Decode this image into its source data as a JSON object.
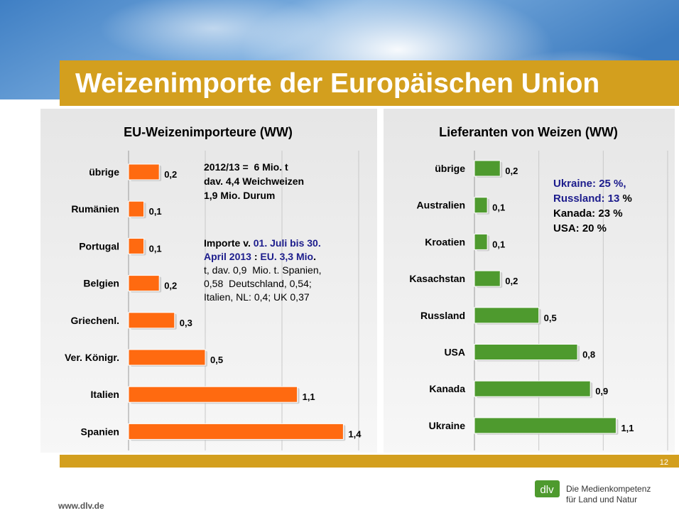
{
  "slide": {
    "title": "Weizenimporte der Europäischen Union",
    "page_number": "12",
    "website": "www.dlv.de",
    "logo": "dlv",
    "tagline": [
      "Die Medienkompetenz",
      "für Land und Natur"
    ]
  },
  "chart_data": [
    {
      "type": "bar",
      "orientation": "horizontal",
      "title": "EU-Weizenimporteure (WW)",
      "categories": [
        "übrige",
        "Rumänien",
        "Portugal",
        "Belgien",
        "Griechenl.",
        "Ver. Königr.",
        "Italien",
        "Spanien"
      ],
      "values": [
        0.2,
        0.1,
        0.1,
        0.2,
        0.3,
        0.5,
        1.1,
        1.4
      ],
      "value_labels": [
        "0,2",
        "0,1",
        "0,1",
        "0,2",
        "0,3",
        "0,5",
        "1,1",
        "1,4"
      ],
      "color": "#ff6a10",
      "xlim": [
        0,
        1.5
      ],
      "xticks": [
        0,
        0.5,
        1,
        1.5
      ],
      "grid": true,
      "annotations": [
        [
          [
            {
              "text": "2012/13 =  6 Mio. t",
              "color": "#000000",
              "bold": true
            }
          ],
          [
            {
              "text": "dav. 4,4 Weichweizen",
              "color": "#000000",
              "bold": true
            }
          ],
          [
            {
              "text": "1,9 Mio. Durum",
              "color": "#000000",
              "bold": true
            }
          ]
        ],
        [
          [
            {
              "text": "Importe v. ",
              "color": "#000000",
              "bold": true
            },
            {
              "text": "01. Juli bis 30.",
              "color": "#1c1c8c",
              "bold": true
            }
          ],
          [
            {
              "text": "April 2013",
              "color": "#1c1c8c",
              "bold": true
            },
            {
              "text": " : ",
              "color": "#000000",
              "bold": true
            },
            {
              "text": "EU. 3,3 Mio",
              "color": "#1c1c8c",
              "bold": true
            },
            {
              "text": ".",
              "color": "#000000",
              "bold": true
            }
          ],
          [
            {
              "text": "t, dav. 0,9  Mio. t. Spanien,",
              "color": "#000000",
              "bold": false
            }
          ],
          [
            {
              "text": "0,58  Deutschland, 0,54;",
              "color": "#000000",
              "bold": false
            }
          ],
          [
            {
              "text": "Italien, NL: 0,4; UK 0,37",
              "color": "#000000",
              "bold": false
            }
          ]
        ]
      ]
    },
    {
      "type": "bar",
      "orientation": "horizontal",
      "title": "Lieferanten von Weizen (WW)",
      "categories": [
        "übrige",
        "Australien",
        "Kroatien",
        "Kasachstan",
        "Russland",
        "USA",
        "Kanada",
        "Ukraine"
      ],
      "values": [
        0.2,
        0.1,
        0.1,
        0.2,
        0.5,
        0.8,
        0.9,
        1.1
      ],
      "value_labels": [
        "0,2",
        "0,1",
        "0,1",
        "0,2",
        "0,5",
        "0,8",
        "0,9",
        "1,1"
      ],
      "color": "#4e9a2e",
      "xlim": [
        0,
        1.5
      ],
      "xticks": [
        0,
        0.5,
        1,
        1.5
      ],
      "grid": true,
      "annotations": [
        [
          [
            {
              "text": "Ukraine: 25 %,",
              "color": "#1c1c8c",
              "bold": true
            }
          ],
          [
            {
              "text": "Russland: 13",
              "color": "#1c1c8c",
              "bold": true
            },
            {
              "text": " %",
              "color": "#000000",
              "bold": true
            }
          ],
          [
            {
              "text": "Kanada: 23 %",
              "color": "#000000",
              "bold": true
            }
          ],
          [
            {
              "text": "USA: 20 %",
              "color": "#000000",
              "bold": true
            }
          ]
        ]
      ]
    }
  ]
}
